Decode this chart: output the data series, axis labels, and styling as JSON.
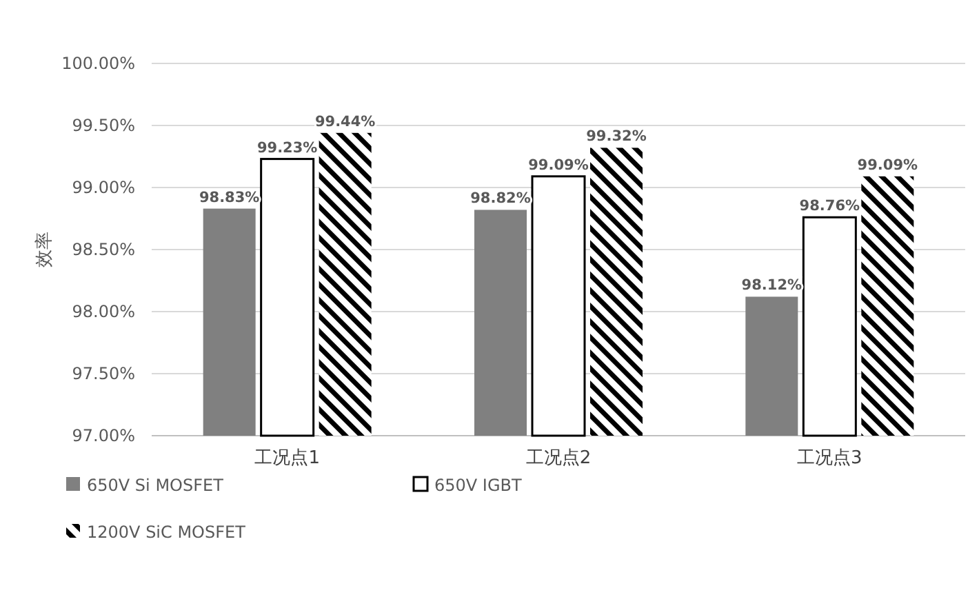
{
  "chart_data": {
    "type": "bar",
    "ylabel": "效率",
    "categories": [
      "工况点1",
      "工况点2",
      "工况点3"
    ],
    "series": [
      {
        "name": "650V Si MOSFET",
        "color": "#808080",
        "values": [
          98.83,
          98.82,
          98.12
        ],
        "value_labels": [
          "98.83%",
          "98.82%",
          "98.12%"
        ]
      },
      {
        "name": "650V IGBT",
        "color": "#ffffff",
        "values": [
          99.23,
          99.09,
          98.76
        ],
        "value_labels": [
          "99.23%",
          "99.09%",
          "98.76%"
        ]
      },
      {
        "name": "1200V SiC MOSFET",
        "color": "#000000",
        "values": [
          99.44,
          99.32,
          99.09
        ],
        "value_labels": [
          "99.44%",
          "99.32%",
          "99.09%"
        ]
      }
    ],
    "ylim": [
      97,
      100
    ],
    "yticks": [
      {
        "value": 97,
        "label": "97.00%"
      },
      {
        "value": 97.5,
        "label": "97.50%"
      },
      {
        "value": 98,
        "label": "98.00%"
      },
      {
        "value": 98.5,
        "label": "98.50%"
      },
      {
        "value": 99,
        "label": "99.00%"
      },
      {
        "value": 99.5,
        "label": "99.50%"
      },
      {
        "value": 100,
        "label": "100.00%"
      }
    ],
    "grid": "y",
    "legend": "bottom"
  }
}
